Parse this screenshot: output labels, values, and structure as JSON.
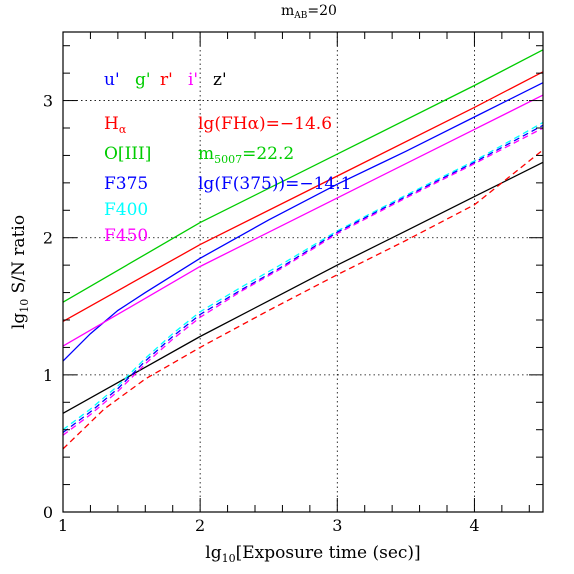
{
  "chart_data": {
    "type": "line",
    "title": "m",
    "title_sub": "AB",
    "title_suffix": "=20",
    "xlabel": {
      "pre": "lg",
      "sub": "10",
      "post": "[Exposure time (sec)]"
    },
    "ylabel": {
      "pre": "lg",
      "sub": "10",
      "post": " S/N ratio"
    },
    "xlim": [
      1.0,
      4.5
    ],
    "ylim": [
      0.0,
      3.5
    ],
    "xticks": [
      1,
      2,
      3,
      4
    ],
    "yticks": [
      0,
      1,
      2,
      3
    ],
    "xtick_labels": [
      "1",
      "2",
      "3",
      "4"
    ],
    "ytick_labels": [
      "0",
      "1",
      "2",
      "3"
    ],
    "grid": "dotted",
    "band_legend": [
      {
        "label": "u'",
        "color": "#0000ff"
      },
      {
        "label": "g'",
        "color": "#00cc00"
      },
      {
        "label": "r'",
        "color": "#ff0000"
      },
      {
        "label": "i'",
        "color": "#ff00ff"
      },
      {
        "label": "z'",
        "color": "#000000"
      }
    ],
    "filter_legend": [
      {
        "label": "H",
        "sub": "α",
        "color": "#ff0000"
      },
      {
        "label": "O[III]",
        "sub": "",
        "color": "#00cc00"
      },
      {
        "label": "F375",
        "sub": "",
        "color": "#0000ff"
      },
      {
        "label": "F400",
        "sub": "",
        "color": "#00ffff"
      },
      {
        "label": "F450",
        "sub": "",
        "color": "#ff00ff"
      }
    ],
    "annotations": [
      {
        "pre": "lg(FHα)=−14.6",
        "sub": "",
        "post": "",
        "color": "#ff0000"
      },
      {
        "pre": "m",
        "sub": "5007",
        "post": "=22.2",
        "color": "#00cc00"
      },
      {
        "pre": "lg(F(375))=−14.1",
        "sub": "",
        "post": "",
        "color": "#0000ff"
      }
    ],
    "series": [
      {
        "color": "#00cc00",
        "dash": "solid",
        "x": [
          1.0,
          2.0,
          3.0,
          4.0,
          4.5
        ],
        "y": [
          1.53,
          2.11,
          2.61,
          3.11,
          3.37
        ]
      },
      {
        "color": "#ff0000",
        "dash": "solid",
        "x": [
          1.0,
          2.0,
          3.0,
          4.0,
          4.5
        ],
        "y": [
          1.39,
          1.95,
          2.45,
          2.95,
          3.21
        ]
      },
      {
        "color": "#0000ff",
        "dash": "solid",
        "x": [
          1.0,
          1.2,
          1.4,
          1.6,
          2.0,
          2.5,
          3.0,
          3.5,
          4.0,
          4.5
        ],
        "y": [
          1.1,
          1.3,
          1.47,
          1.6,
          1.85,
          2.13,
          2.39,
          2.63,
          2.88,
          3.13
        ]
      },
      {
        "color": "#ff00ff",
        "dash": "solid",
        "x": [
          1.0,
          2.0,
          3.0,
          4.0,
          4.5
        ],
        "y": [
          1.21,
          1.79,
          2.29,
          2.79,
          3.04
        ]
      },
      {
        "color": "#000000",
        "dash": "solid",
        "x": [
          1.0,
          1.5,
          2.0,
          2.5,
          3.0,
          3.5,
          4.0,
          4.5
        ],
        "y": [
          0.72,
          1.0,
          1.28,
          1.54,
          1.8,
          2.05,
          2.3,
          2.55
        ]
      },
      {
        "color": "#00ffff",
        "dash": "dashed",
        "x": [
          1.0,
          1.2,
          1.4,
          1.6,
          1.8,
          2.0,
          2.3,
          2.6,
          3.0,
          3.5,
          4.0,
          4.5
        ],
        "y": [
          0.6,
          0.75,
          0.92,
          1.12,
          1.3,
          1.46,
          1.64,
          1.81,
          2.05,
          2.31,
          2.56,
          2.84
        ]
      },
      {
        "color": "#0000ff",
        "dash": "dashed",
        "x": [
          1.0,
          1.2,
          1.4,
          1.6,
          1.8,
          2.0,
          2.3,
          2.6,
          3.0,
          3.5,
          4.0,
          4.5
        ],
        "y": [
          0.58,
          0.73,
          0.9,
          1.1,
          1.28,
          1.44,
          1.62,
          1.79,
          2.04,
          2.3,
          2.55,
          2.82
        ]
      },
      {
        "color": "#ff00ff",
        "dash": "dashed",
        "x": [
          1.0,
          1.2,
          1.4,
          1.6,
          1.8,
          2.0,
          2.3,
          2.6,
          3.0,
          3.5,
          4.0,
          4.5
        ],
        "y": [
          0.56,
          0.71,
          0.88,
          1.08,
          1.26,
          1.42,
          1.61,
          1.78,
          2.03,
          2.29,
          2.54,
          2.8
        ]
      },
      {
        "color": "#ff0000",
        "dash": "dashed",
        "x": [
          1.0,
          1.3,
          1.6,
          2.0,
          2.5,
          3.0,
          3.5,
          4.0,
          4.5
        ],
        "y": [
          0.46,
          0.75,
          0.97,
          1.2,
          1.47,
          1.73,
          1.98,
          2.24,
          2.64
        ]
      }
    ]
  }
}
